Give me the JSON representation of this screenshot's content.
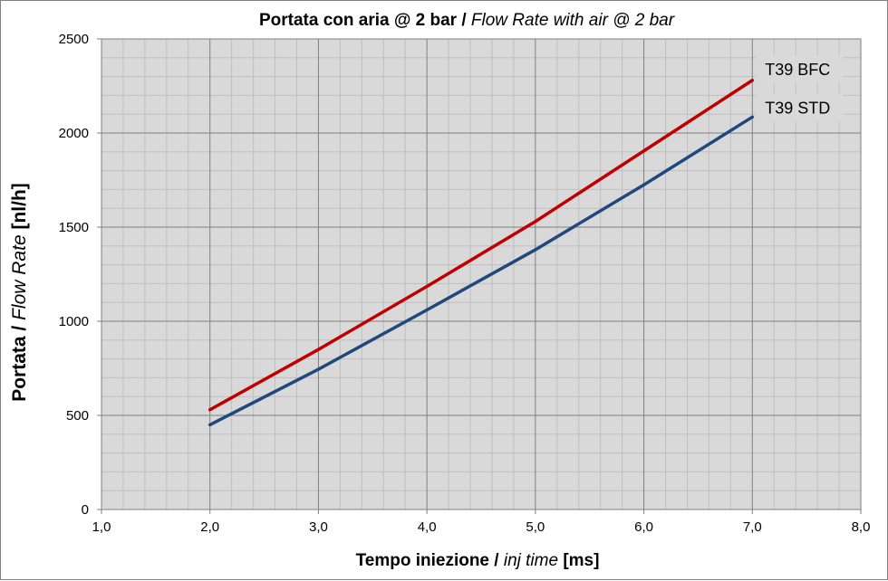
{
  "chart_data": {
    "type": "line",
    "title_main": "Portata con aria @ 2 bar /",
    "title_italic": "Flow Rate with air @ 2 bar",
    "xlabel_main": "Tempo iniezione /",
    "xlabel_italic": "inj time",
    "xlabel_unit": "[ms]",
    "ylabel_main": "Portata /",
    "ylabel_italic": "Flow Rate",
    "ylabel_unit": "[nl/h]",
    "xlim": [
      1.0,
      8.0
    ],
    "ylim": [
      0,
      2500
    ],
    "x_ticks": [
      "1,0",
      "2,0",
      "3,0",
      "4,0",
      "5,0",
      "6,0",
      "7,0",
      "8,0"
    ],
    "y_ticks": [
      "0",
      "500",
      "1000",
      "1500",
      "2000",
      "2500"
    ],
    "grid": true,
    "series": [
      {
        "name": "T39 BFC",
        "color": "#c00000",
        "x": [
          2.0,
          3.0,
          4.0,
          5.0,
          6.0,
          7.0
        ],
        "values": [
          530,
          850,
          1185,
          1530,
          1905,
          2280
        ]
      },
      {
        "name": "T39 STD",
        "color": "#1f497d",
        "x": [
          2.0,
          3.0,
          4.0,
          5.0,
          6.0,
          7.0
        ],
        "values": [
          450,
          745,
          1060,
          1380,
          1725,
          2085
        ]
      }
    ]
  }
}
